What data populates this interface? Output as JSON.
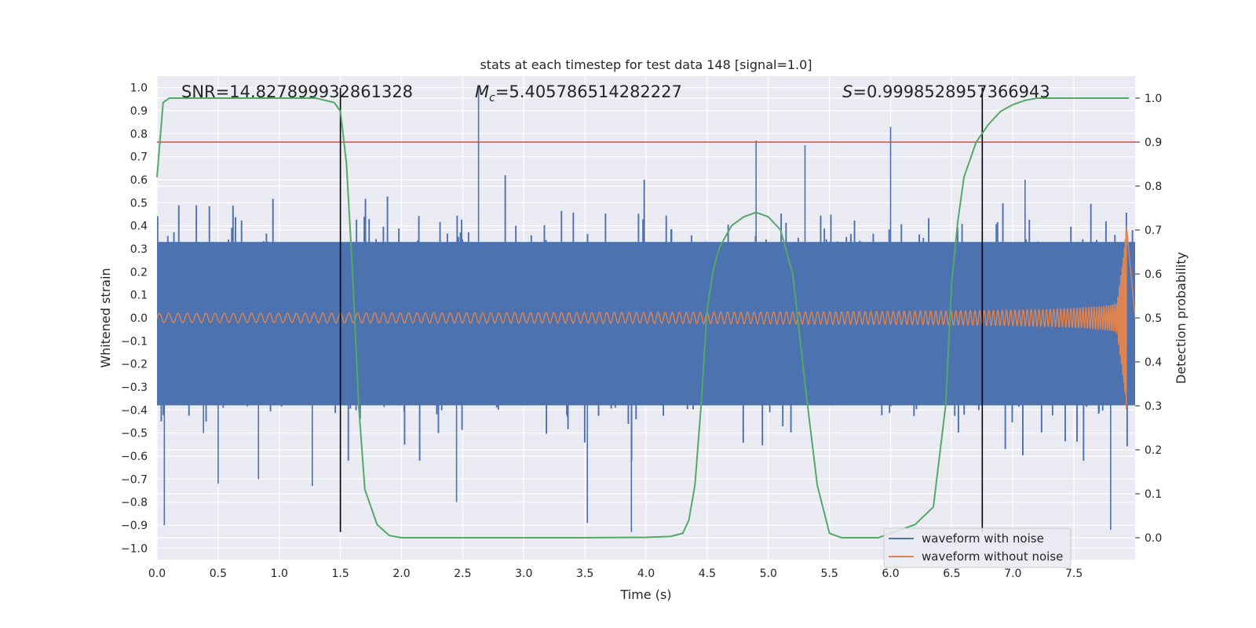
{
  "chart_data": {
    "type": "line",
    "title": "stats at each timestep for test data 148 [signal=1.0]",
    "xlabel": "Time (s)",
    "ylabel": "Whitened strain",
    "y2label": "Detection probability",
    "xlim": [
      0.0,
      8.0
    ],
    "ylim": [
      -1.05,
      1.05
    ],
    "y2lim": [
      -0.05,
      1.05
    ],
    "xticks": [
      "0.0",
      "0.5",
      "1.0",
      "1.5",
      "2.0",
      "2.5",
      "3.0",
      "3.5",
      "4.0",
      "4.5",
      "5.0",
      "5.5",
      "6.0",
      "6.5",
      "7.0",
      "7.5"
    ],
    "yticks": [
      "1.0",
      "0.9",
      "0.8",
      "0.7",
      "0.6",
      "0.5",
      "0.4",
      "0.3",
      "0.2",
      "0.1",
      "0.0",
      "−0.1",
      "−0.2",
      "−0.3",
      "−0.4",
      "−0.5",
      "−0.6",
      "−0.7",
      "−0.8",
      "−0.9",
      "−1.0"
    ],
    "y2ticks": [
      "1.0",
      "0.9",
      "0.8",
      "0.7",
      "0.6",
      "0.5",
      "0.4",
      "0.3",
      "0.2",
      "0.1",
      "0.0"
    ],
    "grid": true,
    "legend_position": "bottom-right",
    "annotations": {
      "snr": "SNR=14.827899932861328",
      "mc_symbol": "M",
      "mc_sub": "c",
      "mc_value": "=5.405786514282227",
      "s_symbol": "S",
      "s_value": "=0.9998528957366943"
    },
    "threshold_line": {
      "y2": 0.9,
      "color": "#c44e52"
    },
    "vertical_lines": {
      "x": [
        1.5,
        6.75
      ],
      "color": "#000000"
    },
    "series": [
      {
        "name": "waveform with noise",
        "color": "#4c72b0",
        "envelope": {
          "t": [
            0.0,
            8.0
          ],
          "y_min": -0.65,
          "y_max": 0.6
        },
        "spikes": [
          {
            "t": 0.06,
            "y": -0.9
          },
          {
            "t": 0.38,
            "y": -0.5
          },
          {
            "t": 0.5,
            "y": -0.72
          },
          {
            "t": 0.83,
            "y": -0.7
          },
          {
            "t": 1.27,
            "y": -0.73
          },
          {
            "t": 2.45,
            "y": -0.8
          },
          {
            "t": 2.63,
            "y": 1.0
          },
          {
            "t": 3.52,
            "y": -0.89
          },
          {
            "t": 3.88,
            "y": -0.93
          },
          {
            "t": 4.9,
            "y": 0.77
          },
          {
            "t": 6.0,
            "y": 0.83
          },
          {
            "t": 7.8,
            "y": -0.92
          },
          {
            "t": 7.1,
            "y": 0.6
          },
          {
            "t": 5.3,
            "y": 0.75
          }
        ]
      },
      {
        "name": "waveform without noise",
        "color": "#dd8452",
        "chirp": {
          "t_end": 7.93,
          "amp_start": 0.02,
          "amp_peak": 0.47,
          "freq_start_hz": 13.0,
          "freq_end_hz": 180.0
        }
      },
      {
        "name": "Detection probability",
        "color": "#55a868",
        "axis": "right",
        "x": [
          0.0,
          0.05,
          0.1,
          0.2,
          0.5,
          1.0,
          1.3,
          1.45,
          1.5,
          1.55,
          1.6,
          1.65,
          1.7,
          1.8,
          1.9,
          2.0,
          2.5,
          3.0,
          3.5,
          4.0,
          4.2,
          4.3,
          4.35,
          4.4,
          4.45,
          4.5,
          4.55,
          4.6,
          4.7,
          4.8,
          4.9,
          5.0,
          5.1,
          5.2,
          5.3,
          5.4,
          5.5,
          5.6,
          5.7,
          5.9,
          6.2,
          6.35,
          6.45,
          6.5,
          6.55,
          6.6,
          6.7,
          6.8,
          6.9,
          7.0,
          7.1,
          7.2,
          7.3,
          7.4,
          7.5,
          7.8,
          7.95
        ],
        "y": [
          0.82,
          0.99,
          1.0,
          1.0,
          1.0,
          1.0,
          1.0,
          0.99,
          0.97,
          0.85,
          0.6,
          0.3,
          0.11,
          0.03,
          0.005,
          0.0,
          0.0,
          0.0,
          0.0,
          0.001,
          0.003,
          0.01,
          0.04,
          0.12,
          0.3,
          0.52,
          0.61,
          0.66,
          0.71,
          0.73,
          0.74,
          0.73,
          0.7,
          0.6,
          0.35,
          0.12,
          0.01,
          0.0,
          0.0,
          0.0,
          0.03,
          0.07,
          0.3,
          0.58,
          0.72,
          0.82,
          0.9,
          0.94,
          0.97,
          0.985,
          0.995,
          1.0,
          1.0,
          1.0,
          1.0,
          1.0,
          1.0
        ]
      }
    ]
  }
}
